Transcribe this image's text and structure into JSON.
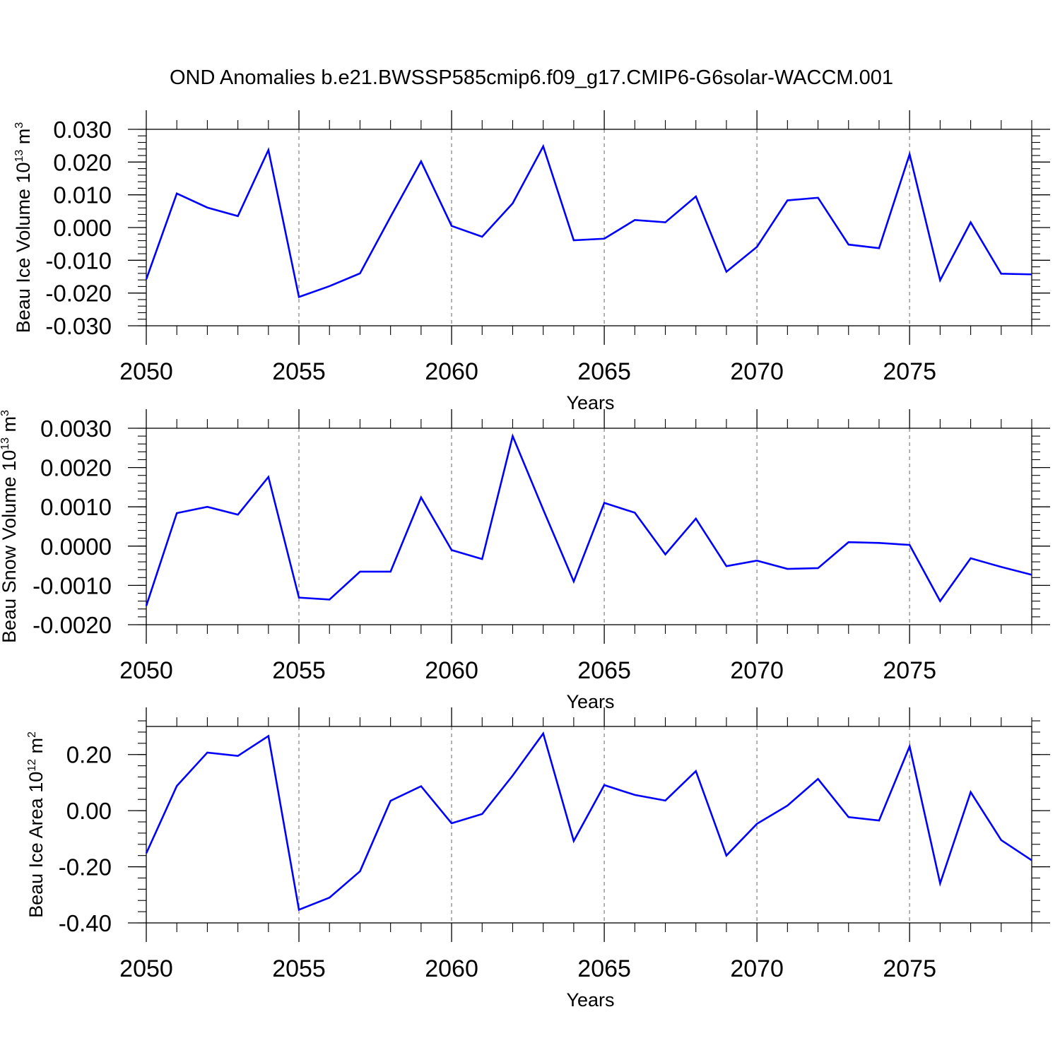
{
  "chart_data": {
    "title": "OND Anomalies b.e21.BWSSP585cmip6.f09_g17.CMIP6-G6solar-WACCM.001",
    "line_color": "#0000ff",
    "panels": [
      {
        "type": "line",
        "ylabel": "Beau Ice Volume 10",
        "ylabel_sup": "13",
        "ylabel_unit": " m",
        "ylabel_unit_sup": "3",
        "xlabel": "Years",
        "xlim": [
          2050,
          2079
        ],
        "ylim": [
          -0.03,
          0.03
        ],
        "yticks": [
          -0.03,
          -0.02,
          -0.01,
          0.0,
          0.01,
          0.02,
          0.03
        ],
        "ytick_labels": [
          "-0.030",
          "-0.020",
          "-0.010",
          "0.000",
          "0.010",
          "0.020",
          "0.030"
        ],
        "yminor_step": 0.002,
        "xticks": [
          2050,
          2055,
          2060,
          2065,
          2070,
          2075
        ],
        "xtick_labels": [
          "2050",
          "2055",
          "2060",
          "2065",
          "2070",
          "2075"
        ],
        "x": [
          2050,
          2051,
          2052,
          2053,
          2054,
          2055,
          2056,
          2057,
          2058,
          2059,
          2060,
          2061,
          2062,
          2063,
          2064,
          2065,
          2066,
          2067,
          2068,
          2069,
          2070,
          2071,
          2072,
          2073,
          2074,
          2075,
          2076,
          2077,
          2078,
          2079
        ],
        "values": [
          -0.0158,
          0.0104,
          0.0061,
          0.0035,
          0.0237,
          -0.0212,
          -0.0179,
          -0.014,
          0.0033,
          0.0202,
          0.0005,
          -0.0028,
          0.0074,
          0.0248,
          -0.0039,
          -0.0034,
          0.0023,
          0.0016,
          0.0095,
          -0.0135,
          -0.0059,
          0.0083,
          0.0091,
          -0.0052,
          -0.0063,
          0.0224,
          -0.0161,
          0.0016,
          -0.0141,
          -0.0143
        ]
      },
      {
        "type": "line",
        "ylabel": "Beau Snow Volume 10",
        "ylabel_sup": "13",
        "ylabel_unit": " m",
        "ylabel_unit_sup": "3",
        "xlabel": "Years",
        "xlim": [
          2050,
          2079
        ],
        "ylim": [
          -0.002,
          0.003
        ],
        "yticks": [
          -0.002,
          -0.001,
          0.0,
          0.001,
          0.002,
          0.003
        ],
        "ytick_labels": [
          "-0.0020",
          "-0.0010",
          "0.0000",
          "0.0010",
          "0.0020",
          "0.0030"
        ],
        "yminor_step": 0.0002,
        "xticks": [
          2050,
          2055,
          2060,
          2065,
          2070,
          2075
        ],
        "xtick_labels": [
          "2050",
          "2055",
          "2060",
          "2065",
          "2070",
          "2075"
        ],
        "x": [
          2050,
          2051,
          2052,
          2053,
          2054,
          2055,
          2056,
          2057,
          2058,
          2059,
          2060,
          2061,
          2062,
          2063,
          2064,
          2065,
          2066,
          2067,
          2068,
          2069,
          2070,
          2071,
          2072,
          2073,
          2074,
          2075,
          2076,
          2077,
          2078,
          2079
        ],
        "values": [
          -0.00152,
          0.00084,
          0.001,
          0.0008,
          0.00176,
          -0.00131,
          -0.00136,
          -0.00065,
          -0.00065,
          0.00124,
          -0.0001,
          -0.00033,
          0.0028,
          0.00093,
          -0.0009,
          0.0011,
          0.00085,
          -0.00021,
          0.0007,
          -0.00051,
          -0.00037,
          -0.00058,
          -0.00056,
          0.0001,
          8e-05,
          3e-05,
          -0.0014,
          -0.00031,
          -0.00053,
          -0.00073
        ]
      },
      {
        "type": "line",
        "ylabel": "Beau Ice Area 10",
        "ylabel_sup": "12",
        "ylabel_unit": " m",
        "ylabel_unit_sup": "2",
        "xlabel": "Years",
        "xlim": [
          2050,
          2079
        ],
        "ylim": [
          -0.4,
          0.3
        ],
        "yticks": [
          -0.4,
          -0.2,
          0.0,
          0.2
        ],
        "ytick_labels": [
          "-0.40",
          "-0.20",
          "0.00",
          "0.20"
        ],
        "yminor_step": 0.04,
        "xticks": [
          2050,
          2055,
          2060,
          2065,
          2070,
          2075
        ],
        "xtick_labels": [
          "2050",
          "2055",
          "2060",
          "2065",
          "2070",
          "2075"
        ],
        "x": [
          2050,
          2051,
          2052,
          2053,
          2054,
          2055,
          2056,
          2057,
          2058,
          2059,
          2060,
          2061,
          2062,
          2063,
          2064,
          2065,
          2066,
          2067,
          2068,
          2069,
          2070,
          2071,
          2072,
          2073,
          2074,
          2075,
          2076,
          2077,
          2078,
          2079
        ],
        "values": [
          -0.152,
          0.088,
          0.207,
          0.195,
          0.266,
          -0.353,
          -0.31,
          -0.216,
          0.035,
          0.087,
          -0.045,
          -0.012,
          0.125,
          0.275,
          -0.108,
          0.091,
          0.056,
          0.036,
          0.141,
          -0.16,
          -0.047,
          0.018,
          0.113,
          -0.023,
          -0.035,
          0.229,
          -0.259,
          0.066,
          -0.105,
          -0.177
        ]
      }
    ]
  }
}
